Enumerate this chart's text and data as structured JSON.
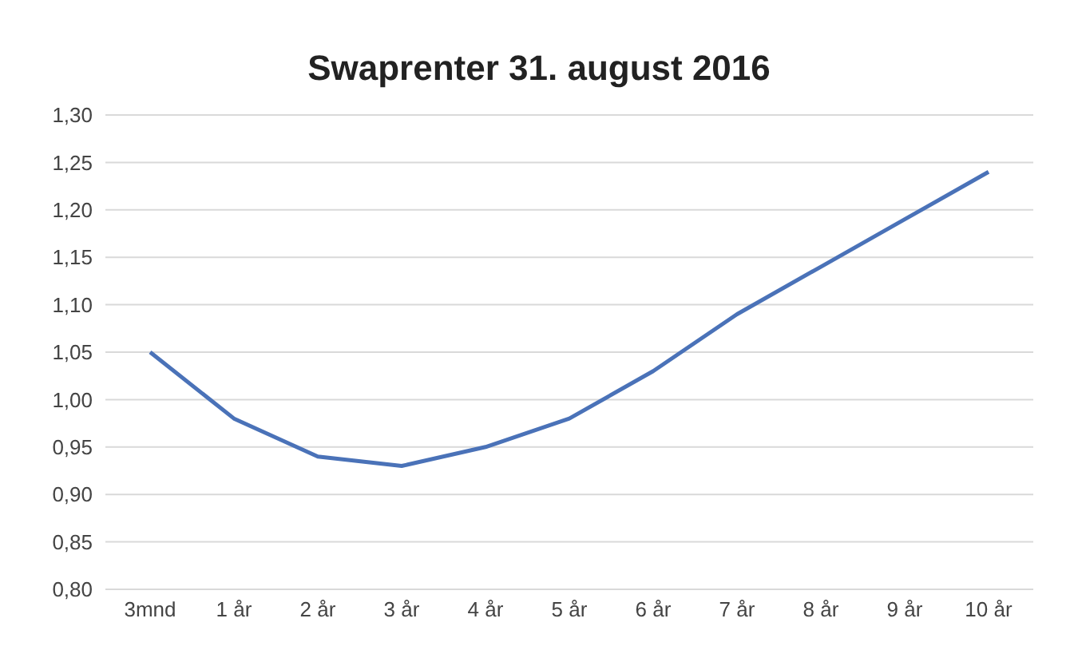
{
  "chart_data": {
    "type": "line",
    "title": "Swaprenter 31. august 2016",
    "categories": [
      "3mnd",
      "1 år",
      "2 år",
      "3 år",
      "4 år",
      "5 år",
      "6 år",
      "7 år",
      "8 år",
      "9 år",
      "10 år"
    ],
    "series": [
      {
        "color": "#4a72b8",
        "values": [
          1.05,
          0.98,
          0.94,
          0.93,
          0.95,
          0.98,
          1.03,
          1.09,
          1.14,
          1.19,
          1.24
        ]
      }
    ],
    "ylim": [
      0.8,
      1.3
    ],
    "yticks": [
      {
        "value": 0.8,
        "label": "0,80"
      },
      {
        "value": 0.85,
        "label": "0,85"
      },
      {
        "value": 0.9,
        "label": "0,90"
      },
      {
        "value": 0.95,
        "label": "0,95"
      },
      {
        "value": 1.0,
        "label": "1,00"
      },
      {
        "value": 1.05,
        "label": "1,05"
      },
      {
        "value": 1.1,
        "label": "1,10"
      },
      {
        "value": 1.15,
        "label": "1,15"
      },
      {
        "value": 1.2,
        "label": "1,20"
      },
      {
        "value": 1.25,
        "label": "1,25"
      },
      {
        "value": 1.3,
        "label": "1,30"
      }
    ],
    "grid": "y",
    "marker": "none",
    "line_style": "solid"
  }
}
